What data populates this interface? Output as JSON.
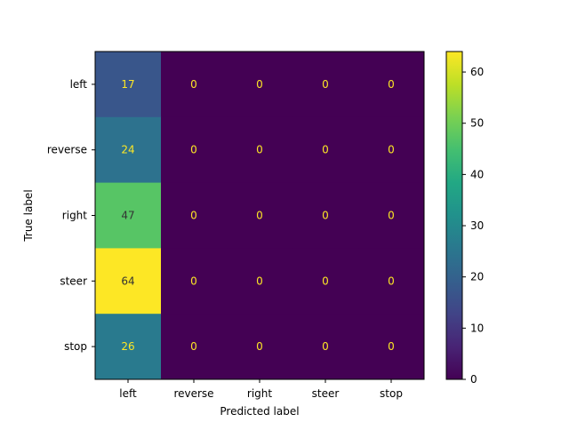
{
  "chart_data": {
    "type": "heatmap",
    "title": "",
    "xlabel": "Predicted label",
    "ylabel": "True label",
    "x_categories": [
      "left",
      "reverse",
      "right",
      "steer",
      "stop"
    ],
    "y_categories": [
      "left",
      "reverse",
      "right",
      "steer",
      "stop"
    ],
    "matrix": [
      [
        17,
        0,
        0,
        0,
        0
      ],
      [
        24,
        0,
        0,
        0,
        0
      ],
      [
        47,
        0,
        0,
        0,
        0
      ],
      [
        64,
        0,
        0,
        0,
        0
      ],
      [
        26,
        0,
        0,
        0,
        0
      ]
    ],
    "colormap": "viridis",
    "value_range": [
      0,
      64
    ],
    "colorbar_ticks": [
      0,
      10,
      20,
      30,
      40,
      50,
      60
    ],
    "text_colors": {
      "on_dark": "#fde725",
      "on_light": "#333333"
    }
  }
}
